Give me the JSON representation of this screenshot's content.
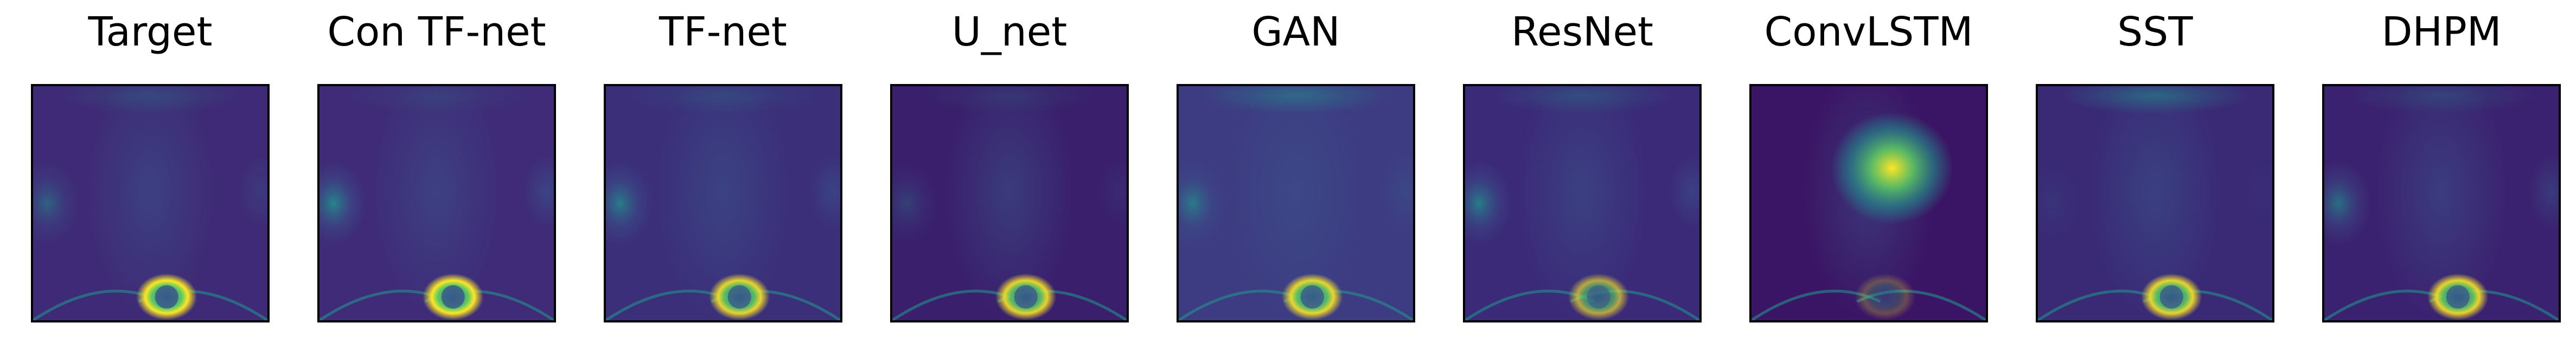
{
  "figure": {
    "panels": [
      {
        "title": "Target"
      },
      {
        "title": "Con TF-net"
      },
      {
        "title": "TF-net"
      },
      {
        "title": "U_net"
      },
      {
        "title": "GAN"
      },
      {
        "title": "ResNet"
      },
      {
        "title": "ConvLSTM"
      },
      {
        "title": "SST"
      },
      {
        "title": "DHPM"
      }
    ]
  },
  "colors": {
    "background_dark": "#440154",
    "mid_blue": "#3b528b",
    "teal": "#21918c",
    "green": "#5ec962",
    "yellow": "#fde725"
  }
}
